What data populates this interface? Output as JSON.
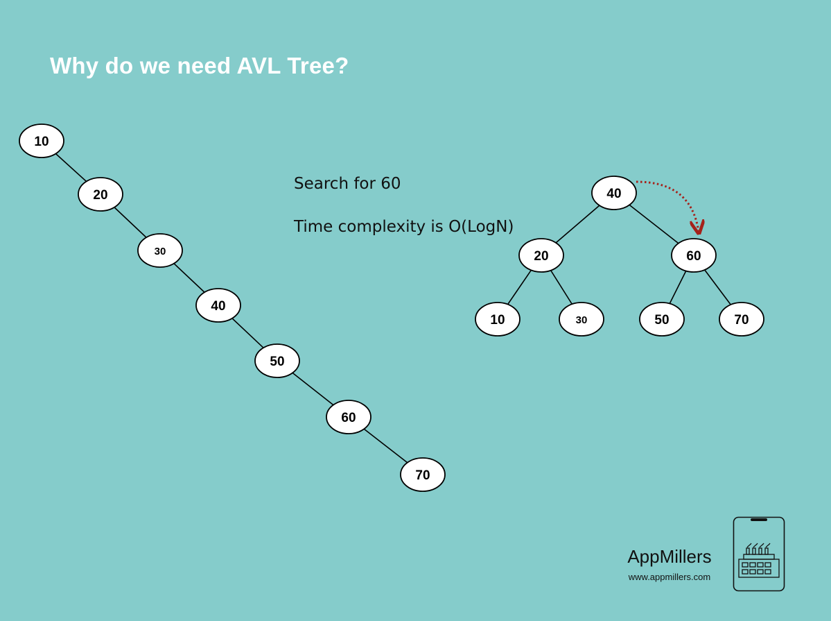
{
  "title": "Why do we need AVL Tree?",
  "notes": {
    "search": "Search for 60",
    "complexity": "Time complexity is O(LogN)"
  },
  "skewed_tree": {
    "nodes": [
      "10",
      "20",
      "30",
      "40",
      "50",
      "60",
      "70"
    ]
  },
  "balanced_tree": {
    "root": "40",
    "level1": [
      "20",
      "60"
    ],
    "level2": [
      "10",
      "30",
      "50",
      "70"
    ],
    "search_path": [
      "40",
      "60"
    ]
  },
  "brand": {
    "name": "AppMillers",
    "url": "www.appmillers.com"
  },
  "colors": {
    "background": "#85cccb",
    "title": "#ffffff",
    "node_fill": "#ffffff",
    "node_stroke": "#000000",
    "search_arrow": "#a5211a"
  },
  "icons": {
    "logo": "factory-in-phone-icon"
  }
}
